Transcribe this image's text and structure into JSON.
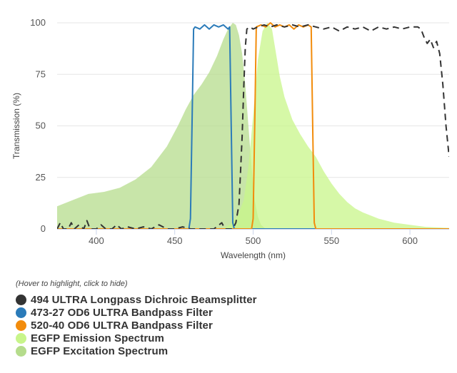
{
  "chart_data": {
    "type": "area",
    "title": "",
    "xlabel": "Wavelength (nm)",
    "ylabel": "Transmission (%)",
    "xlim": [
      375,
      625
    ],
    "ylim": [
      0,
      100
    ],
    "x_ticks": [
      400,
      450,
      500,
      550,
      600
    ],
    "y_ticks": [
      0,
      25,
      50,
      75,
      100
    ],
    "grid": "horizontal",
    "legend_position": "bottom-left",
    "legend_hint": "(Hover to highlight, click to hide)",
    "series": [
      {
        "name": "EGFP Excitation Spectrum",
        "color": "#b5dc8c",
        "style": "area",
        "points": [
          [
            375,
            11
          ],
          [
            385,
            14
          ],
          [
            395,
            17
          ],
          [
            405,
            18
          ],
          [
            415,
            20
          ],
          [
            425,
            24
          ],
          [
            435,
            30
          ],
          [
            445,
            40
          ],
          [
            452,
            50
          ],
          [
            457,
            58
          ],
          [
            462,
            65
          ],
          [
            467,
            70
          ],
          [
            472,
            76
          ],
          [
            477,
            84
          ],
          [
            481,
            92
          ],
          [
            484,
            97
          ],
          [
            487,
            100
          ],
          [
            489,
            99
          ],
          [
            491,
            94
          ],
          [
            493,
            85
          ],
          [
            495,
            70
          ],
          [
            497,
            50
          ],
          [
            499,
            30
          ],
          [
            501,
            14
          ],
          [
            503,
            6
          ],
          [
            505,
            2
          ],
          [
            508,
            0
          ]
        ]
      },
      {
        "name": "EGFP Emission Spectrum",
        "color": "#c8f58a",
        "style": "area",
        "points": [
          [
            480,
            0
          ],
          [
            485,
            2
          ],
          [
            490,
            6
          ],
          [
            494,
            14
          ],
          [
            497,
            30
          ],
          [
            500,
            55
          ],
          [
            503,
            82
          ],
          [
            506,
            96
          ],
          [
            509,
            100
          ],
          [
            512,
            97
          ],
          [
            514,
            88
          ],
          [
            517,
            74
          ],
          [
            520,
            64
          ],
          [
            525,
            53
          ],
          [
            530,
            46
          ],
          [
            535,
            40
          ],
          [
            540,
            35
          ],
          [
            545,
            28
          ],
          [
            550,
            22
          ],
          [
            555,
            17
          ],
          [
            560,
            13
          ],
          [
            565,
            10
          ],
          [
            570,
            8
          ],
          [
            580,
            5
          ],
          [
            590,
            3
          ],
          [
            600,
            2
          ],
          [
            610,
            1
          ],
          [
            625,
            0.5
          ]
        ]
      },
      {
        "name": "473-27 OD6 ULTRA Bandpass Filter",
        "color": "#2b7bb9",
        "style": "line",
        "points": [
          [
            375,
            0
          ],
          [
            459,
            0
          ],
          [
            460,
            5
          ],
          [
            461,
            50
          ],
          [
            462,
            97
          ],
          [
            463,
            98
          ],
          [
            466,
            97
          ],
          [
            469,
            99
          ],
          [
            472,
            97
          ],
          [
            475,
            99
          ],
          [
            478,
            98
          ],
          [
            481,
            99
          ],
          [
            484,
            97
          ],
          [
            485,
            98
          ],
          [
            486,
            50
          ],
          [
            487,
            3
          ],
          [
            488,
            0
          ],
          [
            625,
            0
          ]
        ]
      },
      {
        "name": "520-40 OD6 ULTRA Bandpass Filter",
        "color": "#f28c0c",
        "style": "line",
        "points": [
          [
            375,
            0
          ],
          [
            499,
            0
          ],
          [
            500,
            5
          ],
          [
            501,
            50
          ],
          [
            502,
            98
          ],
          [
            505,
            99
          ],
          [
            508,
            98
          ],
          [
            511,
            100
          ],
          [
            514,
            98
          ],
          [
            517,
            99
          ],
          [
            520,
            98
          ],
          [
            523,
            99
          ],
          [
            526,
            97
          ],
          [
            529,
            99
          ],
          [
            532,
            98
          ],
          [
            535,
            99
          ],
          [
            537,
            98
          ],
          [
            538,
            50
          ],
          [
            539,
            3
          ],
          [
            540,
            0
          ],
          [
            625,
            0
          ]
        ]
      },
      {
        "name": "494 ULTRA Longpass Dichroic Beamsplitter",
        "color": "#333333",
        "style": "dashed",
        "points": [
          [
            375,
            0
          ],
          [
            377,
            3
          ],
          [
            379,
            0
          ],
          [
            382,
            0
          ],
          [
            384,
            3
          ],
          [
            386,
            0
          ],
          [
            389,
            2
          ],
          [
            392,
            0
          ],
          [
            394,
            4
          ],
          [
            396,
            0
          ],
          [
            400,
            0
          ],
          [
            403,
            2
          ],
          [
            406,
            0
          ],
          [
            410,
            0
          ],
          [
            413,
            2
          ],
          [
            416,
            0
          ],
          [
            420,
            1
          ],
          [
            425,
            0
          ],
          [
            430,
            1
          ],
          [
            435,
            0
          ],
          [
            440,
            2
          ],
          [
            445,
            0
          ],
          [
            450,
            0
          ],
          [
            455,
            1
          ],
          [
            460,
            0
          ],
          [
            470,
            0
          ],
          [
            475,
            0
          ],
          [
            480,
            3
          ],
          [
            482,
            0
          ],
          [
            487,
            0
          ],
          [
            489,
            3
          ],
          [
            491,
            12
          ],
          [
            492,
            28
          ],
          [
            493,
            45
          ],
          [
            494,
            68
          ],
          [
            495,
            88
          ],
          [
            496,
            97
          ],
          [
            498,
            98
          ],
          [
            500,
            97
          ],
          [
            503,
            98
          ],
          [
            507,
            99
          ],
          [
            511,
            98
          ],
          [
            515,
            99
          ],
          [
            520,
            98
          ],
          [
            525,
            99
          ],
          [
            530,
            98
          ],
          [
            535,
            99
          ],
          [
            540,
            98
          ],
          [
            545,
            97
          ],
          [
            550,
            98
          ],
          [
            555,
            96
          ],
          [
            560,
            98
          ],
          [
            565,
            97
          ],
          [
            570,
            98
          ],
          [
            575,
            96
          ],
          [
            580,
            98
          ],
          [
            585,
            97
          ],
          [
            590,
            98
          ],
          [
            595,
            97
          ],
          [
            600,
            98
          ],
          [
            605,
            98
          ],
          [
            607,
            97
          ],
          [
            609,
            93
          ],
          [
            611,
            90
          ],
          [
            613,
            92
          ],
          [
            615,
            88
          ],
          [
            617,
            91
          ],
          [
            619,
            85
          ],
          [
            621,
            70
          ],
          [
            623,
            50
          ],
          [
            625,
            35
          ]
        ]
      }
    ]
  }
}
